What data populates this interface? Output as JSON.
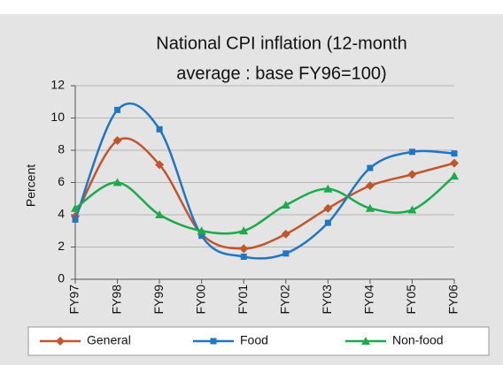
{
  "chart_data": {
    "type": "line",
    "title_lines": [
      "National CPI inflation (12-month",
      "average : base FY96=100)"
    ],
    "y_label": "Percent",
    "categories": [
      "FY97",
      "FY98",
      "FY99",
      "FY00",
      "FY01",
      "FY02",
      "FY03",
      "FY04",
      "FY05",
      "FY06"
    ],
    "series": [
      {
        "name": "General",
        "color": "#c0562a",
        "marker": "diamond",
        "values": [
          3.9,
          8.6,
          7.1,
          2.8,
          1.9,
          2.8,
          4.4,
          5.8,
          6.5,
          7.2
        ]
      },
      {
        "name": "Food",
        "color": "#1f77c4",
        "marker": "square",
        "values": [
          3.7,
          10.5,
          9.3,
          2.7,
          1.4,
          1.6,
          3.5,
          6.9,
          7.9,
          7.8
        ]
      },
      {
        "name": "Non-food",
        "color": "#1aab4a",
        "marker": "triangle",
        "values": [
          4.4,
          6.0,
          4.0,
          3.0,
          3.0,
          4.6,
          5.6,
          4.4,
          4.3,
          6.4
        ]
      }
    ],
    "ylim": [
      0,
      12
    ],
    "yticks": [
      0,
      2,
      4,
      6,
      8,
      10,
      12
    ],
    "grid": true,
    "legend": "bottom"
  }
}
